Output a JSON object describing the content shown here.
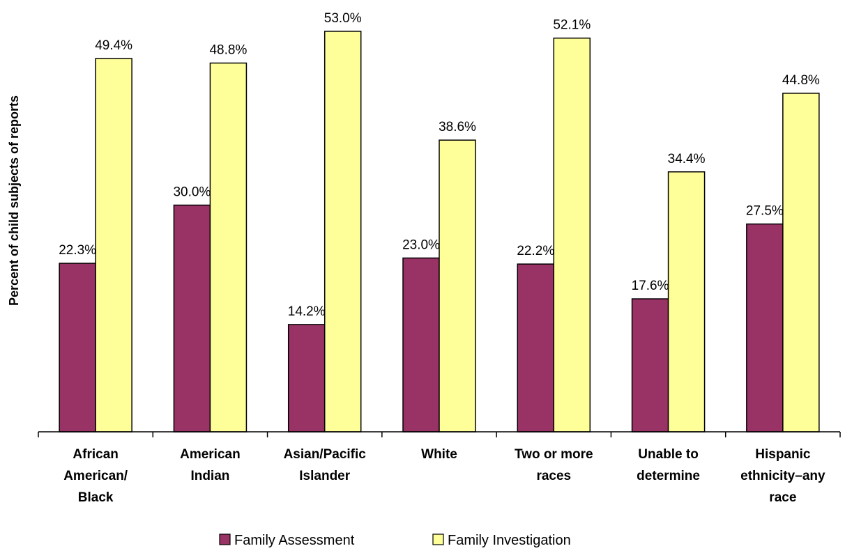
{
  "chart_data": {
    "type": "bar",
    "title": "",
    "xlabel": "",
    "ylabel": "Percent of child subjects of reports",
    "ylim": [
      0,
      60
    ],
    "grid": false,
    "legend_position": "bottom",
    "categories": [
      [
        "African",
        "American/",
        "Black"
      ],
      [
        "American",
        "Indian"
      ],
      [
        "Asian/Pacific",
        "Islander"
      ],
      [
        "White"
      ],
      [
        "Two or more",
        "races"
      ],
      [
        "Unable to",
        "determine"
      ],
      [
        "Hispanic",
        "ethnicity–any",
        "race"
      ]
    ],
    "series": [
      {
        "name": "Family Assessment",
        "color": "#993366",
        "values": [
          22.3,
          30.0,
          14.2,
          23.0,
          22.2,
          17.6,
          27.5
        ],
        "labels": [
          "22.3%",
          "30.0%",
          "14.2%",
          "23.0%",
          "22.2%",
          "17.6%",
          "27.5%"
        ]
      },
      {
        "name": "Family Investigation",
        "color": "#FFFF99",
        "values": [
          49.4,
          48.8,
          53.0,
          38.6,
          52.1,
          34.4,
          44.8
        ],
        "labels": [
          "49.4%",
          "48.8%",
          "53.0%",
          "38.6%",
          "52.1%",
          "34.4%",
          "44.8%"
        ]
      }
    ]
  }
}
